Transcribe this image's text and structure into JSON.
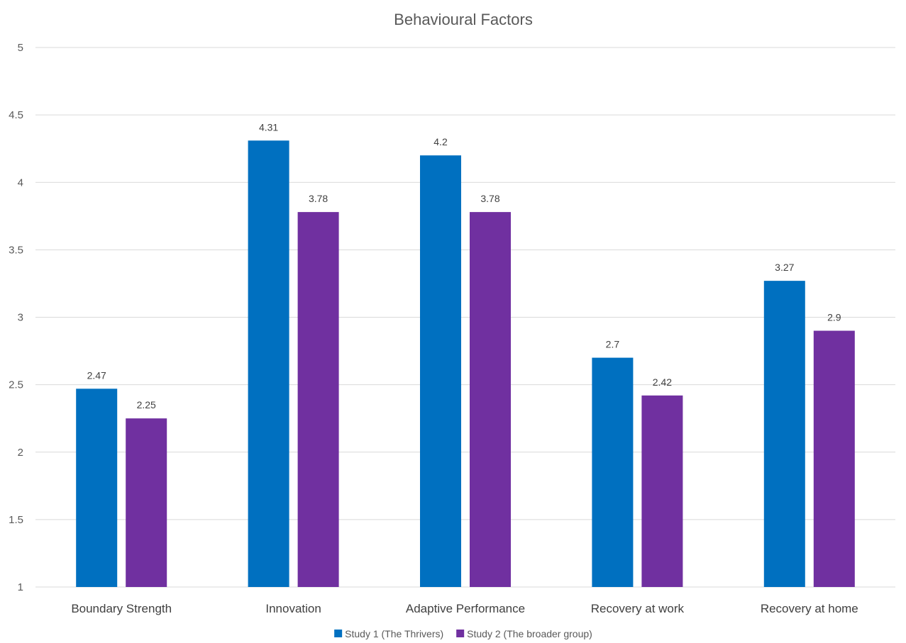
{
  "chart_data": {
    "type": "bar",
    "title": "Behavioural Factors",
    "xlabel": "",
    "ylabel": "",
    "ylim": [
      1,
      5
    ],
    "yticks": [
      1,
      1.5,
      2,
      2.5,
      3,
      3.5,
      4,
      4.5,
      5
    ],
    "grid": true,
    "legend_position": "bottom",
    "categories": [
      "Boundary Strength",
      "Innovation",
      "Adaptive Performance",
      "Recovery at work",
      "Recovery at home"
    ],
    "series": [
      {
        "name": "Study 1 (The Thrivers)",
        "color": "#0070C0",
        "values": [
          2.47,
          4.31,
          4.2,
          2.7,
          3.27
        ]
      },
      {
        "name": "Study 2 (The broader group)",
        "color": "#7030A0",
        "values": [
          2.25,
          3.78,
          3.78,
          2.42,
          2.9
        ]
      }
    ]
  }
}
